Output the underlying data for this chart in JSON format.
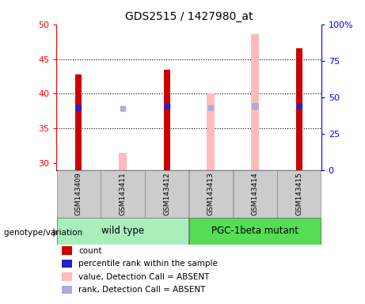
{
  "title": "GDS2515 / 1427980_at",
  "samples": [
    "GSM143409",
    "GSM143411",
    "GSM143412",
    "GSM143413",
    "GSM143414",
    "GSM143415"
  ],
  "ylim_left": [
    29,
    50
  ],
  "ylim_right": [
    0,
    100
  ],
  "yticks_left": [
    30,
    35,
    40,
    45,
    50
  ],
  "yticks_right": [
    0,
    25,
    50,
    75,
    100
  ],
  "ytick_labels_right": [
    "0",
    "25",
    "50",
    "75",
    "100%"
  ],
  "count_values": [
    42.8,
    null,
    43.5,
    null,
    null,
    46.5
  ],
  "rank_values": [
    43.1,
    null,
    43.8,
    null,
    44.0,
    43.7
  ],
  "absent_value_values": [
    null,
    31.5,
    null,
    40.1,
    48.6,
    null
  ],
  "absent_rank_values": [
    null,
    42.3,
    null,
    42.8,
    44.2,
    null
  ],
  "count_color": "#cc0000",
  "rank_color": "#2222cc",
  "absent_value_color": "#ffbbbb",
  "absent_rank_color": "#aaaadd",
  "wt_color": "#aaeebb",
  "pgc_color": "#55dd55",
  "sample_box_color": "#cccccc",
  "legend_items": [
    {
      "label": "count",
      "color": "#cc0000"
    },
    {
      "label": "percentile rank within the sample",
      "color": "#2222cc"
    },
    {
      "label": "value, Detection Call = ABSENT",
      "color": "#ffbbbb"
    },
    {
      "label": "rank, Detection Call = ABSENT",
      "color": "#aaaadd"
    }
  ],
  "genotype_label": "genotype/variation",
  "hgrid_lines": [
    35,
    40,
    45
  ],
  "bar_width": 0.15,
  "rank_square_size": 5
}
